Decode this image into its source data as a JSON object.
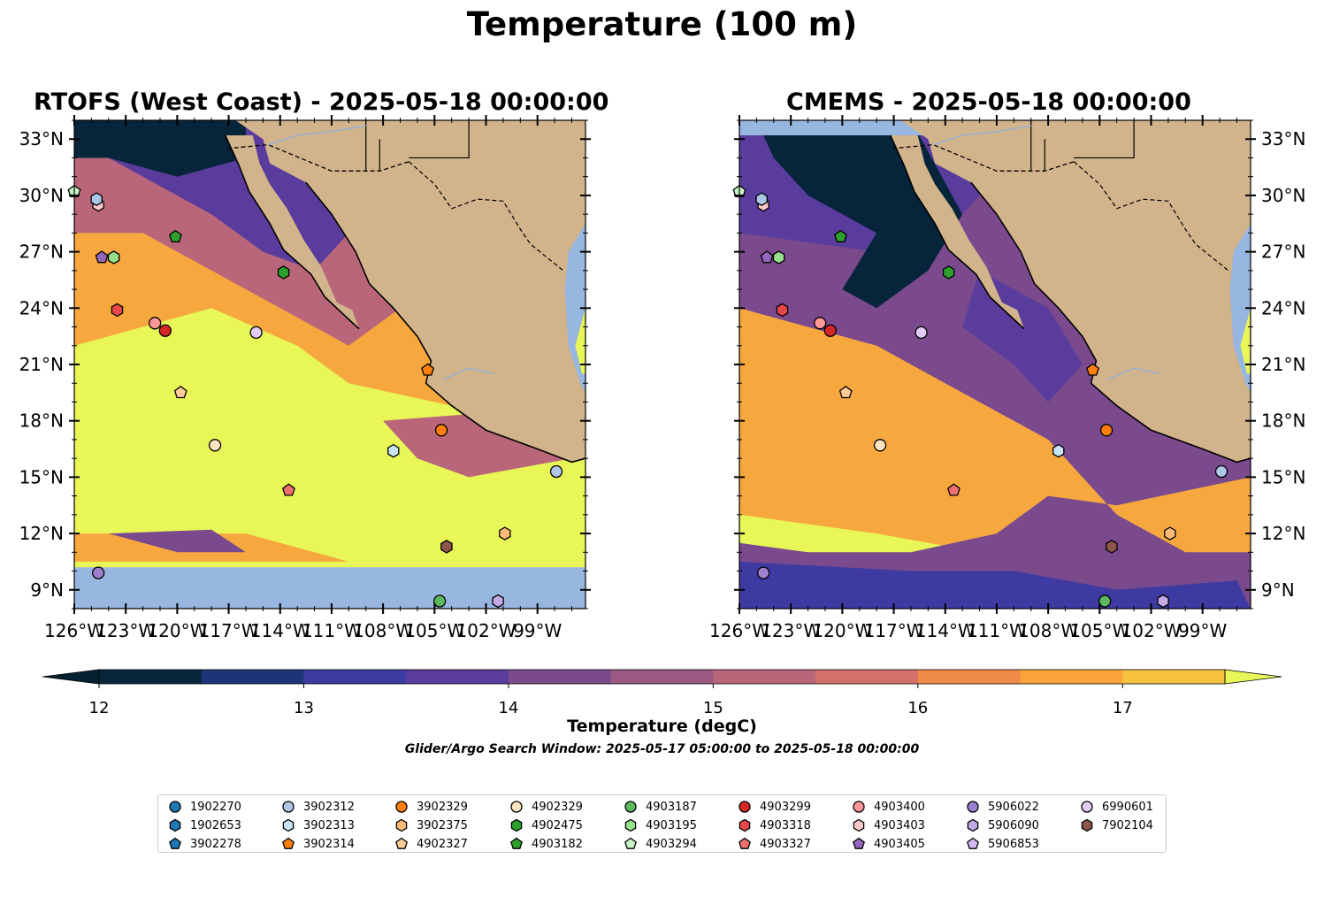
{
  "figure": {
    "title": "Temperature (100 m)",
    "panels": [
      {
        "id": "rtofs",
        "title": "RTOFS (West Coast) - 2025-05-18 00:00:00"
      },
      {
        "id": "cmems",
        "title": "CMEMS - 2025-05-18 00:00:00"
      }
    ],
    "colorbar": {
      "label": "Temperature (degC)",
      "ticks": [
        "12",
        "13",
        "14",
        "15",
        "16",
        "17"
      ],
      "colors": [
        "#06243a",
        "#1d3478",
        "#3d3aa1",
        "#593c9c",
        "#7a4a8d",
        "#9c5a83",
        "#b9657a",
        "#d6706a",
        "#ef8a48",
        "#f9a33a",
        "#f6c240"
      ],
      "under_color": "#042231",
      "over_color": "#e8f757"
    },
    "search_window": "Glider/Argo Search Window: 2025-05-17 05:00:00 to 2025-05-18 00:00:00"
  },
  "axes": {
    "lat_labels": [
      "33°N",
      "30°N",
      "27°N",
      "24°N",
      "21°N",
      "18°N",
      "15°N",
      "12°N",
      "9°N"
    ],
    "lon_labels": [
      "126°W",
      "123°W",
      "120°W",
      "117°W",
      "114°W",
      "111°W",
      "108°W",
      "105°W",
      "102°W",
      "99°W"
    ]
  },
  "chart_data": {
    "type": "heatmap",
    "title": "Temperature (100 m)",
    "variable": "Temperature (degC)",
    "levels_degC": [
      12,
      12.5,
      13,
      13.5,
      14,
      14.5,
      15,
      15.5,
      16,
      16.5,
      17,
      17.5
    ],
    "extent": {
      "lon": [
        -126,
        -96.2
      ],
      "lat": [
        8,
        34
      ]
    },
    "panels": [
      "RTOFS (West Coast) - 2025-05-18 00:00:00",
      "CMEMS - 2025-05-18 00:00:00"
    ],
    "land_color": "#d2b48c",
    "ocean_mask_color": "#97b6e0",
    "floats": [
      {
        "id": "1902270",
        "marker": "circle",
        "color": "#1f77b4"
      },
      {
        "id": "1902653",
        "marker": "hexagon",
        "color": "#1f77b4"
      },
      {
        "id": "3902278",
        "marker": "pentagon",
        "color": "#1f77b4"
      },
      {
        "id": "3902312",
        "marker": "circle",
        "color": "#aec7e8",
        "lon": -97.9,
        "lat": 15.3
      },
      {
        "id": "3902313",
        "marker": "hexagon",
        "color": "#c6e6f6",
        "lon": -107.4,
        "lat": 16.4
      },
      {
        "id": "3902314",
        "marker": "pentagon",
        "color": "#ff7f0e",
        "lon": -105.4,
        "lat": 20.7
      },
      {
        "id": "3902329",
        "marker": "circle",
        "color": "#ff7f0e",
        "lon": -104.6,
        "lat": 17.5
      },
      {
        "id": "3902375",
        "marker": "hexagon",
        "color": "#ffbb78",
        "lon": -100.9,
        "lat": 12.0
      },
      {
        "id": "4902327",
        "marker": "pentagon",
        "color": "#ffcc99",
        "lon": -119.8,
        "lat": 19.5
      },
      {
        "id": "4902329",
        "marker": "circle",
        "color": "#ffe4c4",
        "lon": -117.8,
        "lat": 16.7
      },
      {
        "id": "4902475",
        "marker": "hexagon",
        "color": "#2ca02c",
        "lon": -113.8,
        "lat": 25.9
      },
      {
        "id": "4903182",
        "marker": "pentagon",
        "color": "#2ca02c",
        "lon": -120.1,
        "lat": 27.8
      },
      {
        "id": "4903187",
        "marker": "circle",
        "color": "#5cb85c",
        "lon": -104.7,
        "lat": 8.4
      },
      {
        "id": "4903195",
        "marker": "hexagon",
        "color": "#98df8a",
        "lon": -123.7,
        "lat": 26.7
      },
      {
        "id": "4903294",
        "marker": "pentagon",
        "color": "#c8f5c8",
        "lon": -126.0,
        "lat": 30.2
      },
      {
        "id": "4903299",
        "marker": "circle",
        "color": "#d62728",
        "lon": -120.7,
        "lat": 22.8
      },
      {
        "id": "4903318",
        "marker": "hexagon",
        "color": "#e8474a",
        "lon": -123.5,
        "lat": 23.9
      },
      {
        "id": "4903327",
        "marker": "pentagon",
        "color": "#f07070",
        "lon": -113.5,
        "lat": 14.3
      },
      {
        "id": "4903400",
        "marker": "circle",
        "color": "#ff9896",
        "lon": -121.3,
        "lat": 23.2
      },
      {
        "id": "4903403",
        "marker": "hexagon",
        "color": "#ffc8c8",
        "lon": -124.6,
        "lat": 29.5
      },
      {
        "id": "4903405",
        "marker": "pentagon",
        "color": "#9467bd",
        "lon": -124.4,
        "lat": 26.7
      },
      {
        "id": "5906022",
        "marker": "circle",
        "color": "#9f7fd0",
        "lon": -124.6,
        "lat": 9.9
      },
      {
        "id": "5906090",
        "marker": "hexagon",
        "color": "#c5a8e6",
        "lon": -101.3,
        "lat": 8.4
      },
      {
        "id": "5906853",
        "marker": "pentagon",
        "color": "#d4b9f2"
      },
      {
        "id": "6990601",
        "marker": "circle",
        "color": "#e2ccf7",
        "lon": -115.4,
        "lat": 22.7
      },
      {
        "id": "7902104",
        "marker": "hexagon",
        "color": "#8c564b",
        "lon": -104.3,
        "lat": 11.3
      }
    ],
    "extra_markers_unlisted": [
      {
        "marker": "hexagon",
        "color": "#aec7e8",
        "lon": -124.7,
        "lat": 29.8
      }
    ]
  },
  "legend": {
    "columns": [
      [
        "1902270",
        "1902653",
        "3902278"
      ],
      [
        "3902312",
        "3902313",
        "3902314"
      ],
      [
        "3902329",
        "3902375",
        "4902327"
      ],
      [
        "4902329",
        "4902475",
        "4903182"
      ],
      [
        "4903187",
        "4903195",
        "4903294"
      ],
      [
        "4903299",
        "4903318",
        "4903327"
      ],
      [
        "4903400",
        "4903403",
        "4903405"
      ],
      [
        "5906022",
        "5906090",
        "5906853"
      ],
      [
        "6990601",
        "7902104"
      ]
    ]
  }
}
